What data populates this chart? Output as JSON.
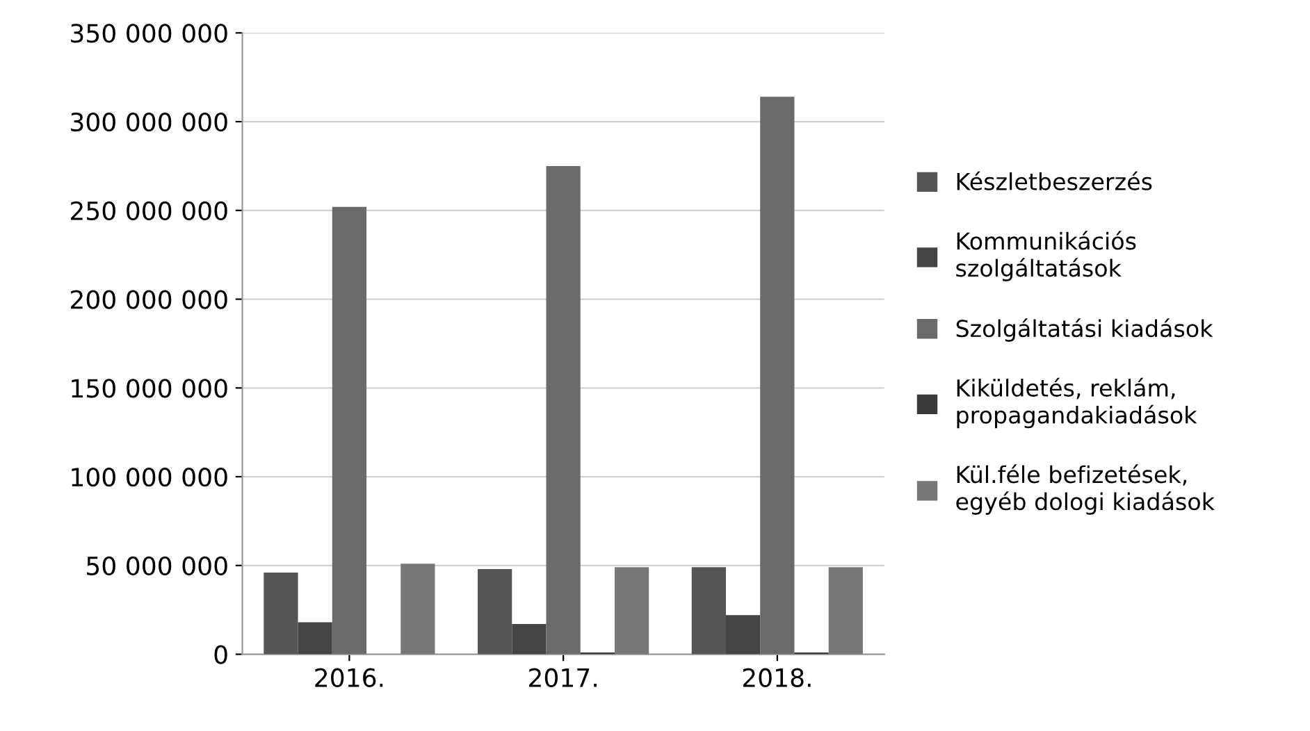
{
  "chart_data": {
    "type": "bar",
    "categories": [
      "2016.",
      "2017.",
      "2018."
    ],
    "series": [
      {
        "name": "Készletbeszerzés",
        "color": "#555555",
        "values": [
          46000000,
          48000000,
          49000000
        ]
      },
      {
        "name": "Kommunikációs\nszolgáltatások",
        "color": "#444444",
        "values": [
          18000000,
          17000000,
          22000000
        ]
      },
      {
        "name": "Szolgáltatási kiadások",
        "color": "#6a6a6a",
        "values": [
          252000000,
          275000000,
          314000000
        ]
      },
      {
        "name": "Kiküldetés, reklám,\npropagandakiadások",
        "color": "#3a3a3a",
        "values": [
          0,
          1000000,
          1000000
        ]
      },
      {
        "name": "Kül.féle befizetések,\negyéb dologi kiadások",
        "color": "#777777",
        "values": [
          51000000,
          49000000,
          49000000
        ]
      }
    ],
    "ylim": [
      0,
      350000000
    ],
    "yticks": [
      {
        "value": 0,
        "label": "0"
      },
      {
        "value": 50000000,
        "label": "50 000 000"
      },
      {
        "value": 100000000,
        "label": "100 000 000"
      },
      {
        "value": 150000000,
        "label": "150 000 000"
      },
      {
        "value": 200000000,
        "label": "200 000 000"
      },
      {
        "value": 250000000,
        "label": "250 000 000"
      },
      {
        "value": 300000000,
        "label": "300 000 000"
      },
      {
        "value": 350000000,
        "label": "350 000 000"
      }
    ],
    "grid": "y",
    "legend": "right"
  }
}
